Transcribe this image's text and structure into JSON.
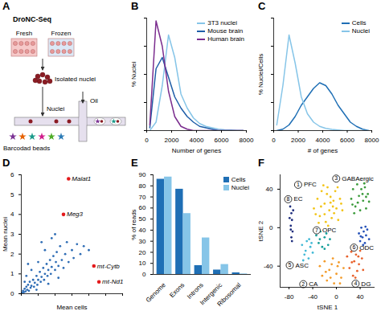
{
  "diagram": {
    "panel": "A",
    "title": "DroNC-Seq",
    "fresh": "Fresh",
    "frozen": "Frozen",
    "isolated": "Isolated nuclei",
    "nuclei": "Nuclei",
    "oil": "Oil",
    "beads": "Barcodad beads"
  },
  "chart_data": [
    {
      "panel": "B",
      "type": "line",
      "xlabel": "Number of genes",
      "ylabel": "% Nuclei",
      "x": [
        250,
        750,
        1250,
        1750,
        2250,
        2750,
        3250,
        3750,
        4250,
        4750,
        5250,
        5750,
        6250,
        6750,
        7250,
        7750
      ],
      "series": [
        {
          "name": "3T3 nuclei",
          "color": "#86c5e8",
          "values": [
            0,
            3,
            16,
            34,
            26,
            13,
            8,
            4.5,
            2.5,
            1.5,
            1,
            0.5,
            0.3,
            0.2,
            0,
            0
          ]
        },
        {
          "name": "Mouse brain",
          "color": "#1f5ea8",
          "values": [
            1,
            22,
            26,
            19,
            12,
            8,
            5,
            3,
            1.5,
            1,
            0.5,
            0,
            0,
            0,
            0,
            0
          ]
        },
        {
          "name": "Human brain",
          "color": "#7b2d8e",
          "values": [
            2,
            39,
            30,
            14,
            5,
            1.5,
            0.5,
            0,
            0,
            0,
            0,
            0,
            0,
            0,
            0,
            0
          ]
        }
      ],
      "xlim": [
        0,
        8000
      ],
      "xticks": [
        0,
        2000,
        4000,
        6000,
        8000
      ],
      "ylim": [
        0,
        40
      ],
      "yticks": [
        0,
        10,
        20,
        30,
        40
      ],
      "tick_labels": "x",
      "legend": "top-right"
    },
    {
      "panel": "C",
      "type": "line",
      "xlabel": "# of genes",
      "ylabel": "% Nuclei/Cells",
      "x": [
        250,
        750,
        1250,
        1750,
        2250,
        2750,
        3250,
        3750,
        4250,
        4750,
        5250,
        5750,
        6250,
        6750,
        7250,
        7750
      ],
      "series": [
        {
          "name": "Cells",
          "color": "#1f6fb5",
          "values": [
            0,
            0.5,
            2,
            5,
            9,
            12,
            15,
            17,
            16,
            13,
            9,
            6,
            3,
            1.5,
            0.5,
            0
          ]
        },
        {
          "name": "Nuclei",
          "color": "#86c5e8",
          "values": [
            2,
            16,
            34,
            24,
            12,
            6,
            3,
            1.5,
            0.8,
            0.4,
            0.2,
            0,
            0,
            0,
            0,
            0
          ]
        }
      ],
      "xlim": [
        0,
        8000
      ],
      "xticks": [
        0,
        2000,
        4000,
        6000,
        8000
      ],
      "ylim": [
        0,
        40
      ],
      "yticks": [
        0,
        10,
        20,
        30,
        40
      ],
      "tick_labels": "x",
      "legend": "top-right"
    },
    {
      "panel": "D",
      "type": "scatter",
      "xlabel": "Mean cells",
      "ylabel": "Mean nuclei",
      "xlim": [
        0,
        6
      ],
      "xticks": [
        0,
        1,
        2,
        3,
        4,
        5,
        6
      ],
      "ylim": [
        0,
        6
      ],
      "yticks": [
        0,
        1,
        2,
        3,
        4,
        5,
        6
      ],
      "tick_labels": "y",
      "series": [
        {
          "color": "#2f6db5",
          "x": [
            0.05,
            0.1,
            0.15,
            0.2,
            0.25,
            0.3,
            0.35,
            0.4,
            0.45,
            0.5,
            0.55,
            0.6,
            0.7,
            0.75,
            0.8,
            0.9,
            0.95,
            1.0,
            1.1,
            1.15,
            1.2,
            1.3,
            1.35,
            1.4,
            1.5,
            1.55,
            1.6,
            1.7,
            1.75,
            1.8,
            1.9,
            2.0,
            2.05,
            2.1,
            2.2,
            2.3,
            2.4,
            2.5,
            2.6,
            2.7,
            2.8,
            3.0,
            3.1,
            3.3,
            3.5,
            3.7,
            4.0,
            0.3,
            0.6,
            1.0,
            1.4,
            1.8,
            0.2,
            0.9,
            1.6,
            2.2,
            0.4,
            1.2,
            2.0
          ],
          "values": [
            0.05,
            0.15,
            0.08,
            0.25,
            0.12,
            0.35,
            0.2,
            0.45,
            0.15,
            0.6,
            0.3,
            0.4,
            0.7,
            0.35,
            0.55,
            0.9,
            0.45,
            0.7,
            1.1,
            0.6,
            0.85,
            1.3,
            0.7,
            1.0,
            1.5,
            0.9,
            1.2,
            1.7,
            1.0,
            1.35,
            1.9,
            1.2,
            1.6,
            2.1,
            1.4,
            2.4,
            1.7,
            1.3,
            2.0,
            2.6,
            1.6,
            2.2,
            1.8,
            2.5,
            2.0,
            2.4,
            2.2,
            0.9,
            1.2,
            1.6,
            2.2,
            2.8,
            0.6,
            0.2,
            0.5,
            0.8,
            1.5,
            2.6,
            3.0
          ]
        },
        {
          "color": "#e41a1c",
          "x": [
            2.8,
            2.5,
            4.3,
            4.6
          ],
          "values": [
            5.8,
            4.0,
            1.4,
            0.6
          ],
          "labels": [
            "Malat1",
            "Meg3",
            "mt-Cytb",
            "mt-Nd1"
          ]
        }
      ]
    },
    {
      "panel": "E",
      "type": "bar",
      "ylabel": "% of reads",
      "categories": [
        "Genome",
        "Exons",
        "Introns",
        "Intergenic",
        "Ribosomal"
      ],
      "series": [
        {
          "name": "Cells",
          "color": "#1f6fb5",
          "values": [
            86,
            77,
            8,
            4,
            1.5
          ]
        },
        {
          "name": "Nuclei",
          "color": "#86c5e8",
          "values": [
            88,
            55,
            33,
            9,
            0.5
          ]
        }
      ],
      "ylim": [
        0,
        90
      ],
      "yticks": [
        0,
        10,
        20,
        30,
        40,
        50,
        60,
        70,
        80,
        90
      ],
      "legend": "top-right"
    },
    {
      "panel": "F",
      "type": "scatter",
      "xlabel": "tSNE 1",
      "ylabel": "tSNE 2",
      "xlim": [
        -95,
        65
      ],
      "xticks": [
        -80,
        -40,
        0,
        40
      ],
      "ylim": [
        -62,
        55
      ],
      "yticks": [
        -40,
        0,
        40
      ],
      "series": [
        {
          "name": "PFC",
          "number": 1,
          "color": "#f2c418",
          "x": [
            -38,
            -32,
            -28,
            -25,
            -20,
            -18,
            -15,
            -12,
            -10,
            -8,
            -5,
            -2,
            0,
            3,
            6,
            10,
            -30,
            -22,
            -14,
            -6,
            2,
            -35,
            -26,
            -16,
            -4,
            8,
            -20,
            -10
          ],
          "values": [
            20,
            30,
            12,
            38,
            25,
            6,
            42,
            18,
            32,
            10,
            28,
            38,
            20,
            8,
            30,
            18,
            5,
            44,
            2,
            22,
            42,
            14,
            22,
            35,
            15,
            25,
            14,
            26
          ]
        },
        {
          "name": "CA",
          "number": 2,
          "color": "#f39b2a",
          "x": [
            -28,
            -24,
            -20,
            -16,
            -12,
            -8,
            -4,
            0,
            4,
            8,
            12,
            -18,
            -6,
            6,
            -10,
            2
          ],
          "values": [
            -40,
            -50,
            -35,
            -55,
            -44,
            -38,
            -58,
            -48,
            -36,
            -52,
            -42,
            -46,
            -32,
            -58,
            -52,
            -40
          ]
        },
        {
          "name": "GABAergic",
          "number": 3,
          "color": "#3c9b3c",
          "x": [
            25,
            28,
            32,
            35,
            38,
            40,
            42,
            45,
            48,
            50,
            53,
            55,
            30,
            36,
            44,
            50,
            27,
            47
          ],
          "values": [
            30,
            40,
            22,
            45,
            33,
            18,
            40,
            28,
            42,
            20,
            35,
            27,
            15,
            26,
            35,
            32,
            24,
            46
          ]
        },
        {
          "name": "DG",
          "number": 4,
          "color": "#e8612c",
          "x": [
            18,
            22,
            25,
            28,
            30,
            33,
            35,
            38,
            40,
            43,
            45,
            26,
            32,
            37
          ],
          "values": [
            -30,
            -42,
            -25,
            -50,
            -35,
            -28,
            -45,
            -38,
            -24,
            -32,
            -44,
            -36,
            -52,
            -30
          ]
        },
        {
          "name": "ASC",
          "number": 5,
          "color": "#42b9d6",
          "x": [
            -58,
            -54,
            -50,
            -47,
            -44,
            -40,
            -52,
            -46,
            -56,
            -42
          ],
          "values": [
            -18,
            -28,
            -14,
            -32,
            -20,
            -26,
            -24,
            -12,
            -34,
            -16
          ]
        },
        {
          "name": "ODC",
          "number": 6,
          "color": "#2451b8",
          "x": [
            38,
            40,
            42,
            44,
            46,
            48,
            50,
            52,
            55,
            45,
            41,
            49
          ],
          "values": [
            -6,
            -14,
            0,
            -10,
            -4,
            -16,
            -8,
            -2,
            -12,
            -18,
            -9,
            1
          ]
        },
        {
          "name": "OPC",
          "number": 7,
          "color": "#169f9a",
          "x": [
            -34,
            -30,
            -27,
            -24,
            -20,
            -17,
            -14,
            -11,
            -28,
            -20
          ],
          "values": [
            -8,
            -16,
            -4,
            -20,
            -10,
            -6,
            -18,
            -12,
            -12,
            -22
          ]
        },
        {
          "name": "EC",
          "number": 8,
          "color": "#1e2d7d",
          "x": [
            -78,
            -76,
            -75,
            -77,
            -74,
            -76,
            -73,
            -79,
            -75,
            -77
          ],
          "values": [
            22,
            15,
            8,
            2,
            -4,
            -10,
            18,
            10,
            -14,
            -2
          ]
        }
      ]
    }
  ]
}
